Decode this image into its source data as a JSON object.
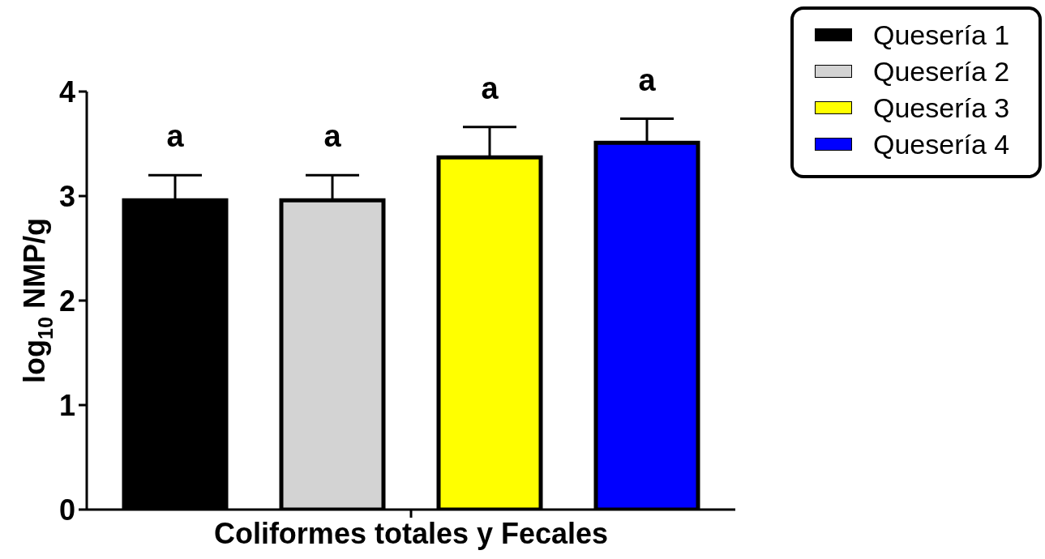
{
  "chart_data": {
    "type": "bar",
    "categories": [
      "Coliformes totales y Fecales"
    ],
    "ylabel": "log$_{10}$ NMP/g",
    "ylim": [
      0,
      4
    ],
    "yticks": [
      0,
      1,
      2,
      3,
      4
    ],
    "legend": "top right",
    "series": [
      {
        "name": "Quesería 1",
        "color": "#000000",
        "values": [
          2.96
        ],
        "errors": [
          [
            2.96,
            3.2
          ]
        ],
        "value_labels": [
          "a"
        ]
      },
      {
        "name": "Quesería 2",
        "color": "#d3d3d3",
        "values": [
          2.96
        ],
        "errors": [
          [
            2.96,
            3.2
          ]
        ],
        "value_labels": [
          "a"
        ]
      },
      {
        "name": "Quesería 3",
        "color": "#ffff00",
        "values": [
          3.37
        ],
        "errors": [
          [
            3.37,
            3.66
          ]
        ],
        "value_labels": [
          "a"
        ]
      },
      {
        "name": "Quesería 4",
        "color": "#0000ff",
        "values": [
          3.51
        ],
        "errors": [
          [
            3.51,
            3.74
          ]
        ],
        "value_labels": [
          "a"
        ]
      }
    ]
  }
}
